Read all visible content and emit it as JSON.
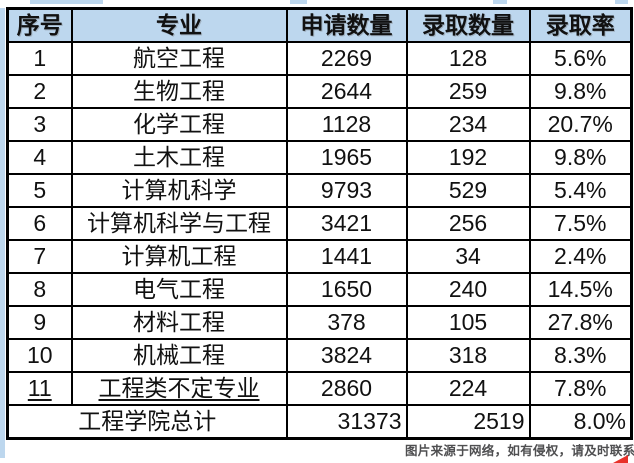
{
  "table": {
    "headers": [
      "序号",
      "专业",
      "申请数量",
      "录取数量",
      "录取率"
    ],
    "rows": [
      [
        "1",
        "航空工程",
        "2269",
        "128",
        "5.6%"
      ],
      [
        "2",
        "生物工程",
        "2644",
        "259",
        "9.8%"
      ],
      [
        "3",
        "化学工程",
        "1128",
        "234",
        "20.7%"
      ],
      [
        "4",
        "土木工程",
        "1965",
        "192",
        "9.8%"
      ],
      [
        "5",
        "计算机科学",
        "9793",
        "529",
        "5.4%"
      ],
      [
        "6",
        "计算机科学与工程",
        "3421",
        "256",
        "7.5%"
      ],
      [
        "7",
        "计算机工程",
        "1441",
        "34",
        "2.4%"
      ],
      [
        "8",
        "电气工程",
        "1650",
        "240",
        "14.5%"
      ],
      [
        "9",
        "材料工程",
        "378",
        "105",
        "27.8%"
      ],
      [
        "10",
        "机械工程",
        "3824",
        "318",
        "8.3%"
      ],
      [
        "11",
        "工程类不定专业",
        "2860",
        "224",
        "7.8%"
      ]
    ],
    "total_row": {
      "label": "工程学院总计",
      "applied": "31373",
      "admitted": "2519",
      "rate": "8.0%"
    }
  },
  "watermark": {
    "text": "图片来源于网络，如有侵权，请及时联系托普仕留学删除"
  },
  "colors": {
    "header_bg": "#BDD7EE",
    "border": "#000000",
    "watermark_text": "#4f4f51",
    "corner_accent": "#E8312A"
  }
}
